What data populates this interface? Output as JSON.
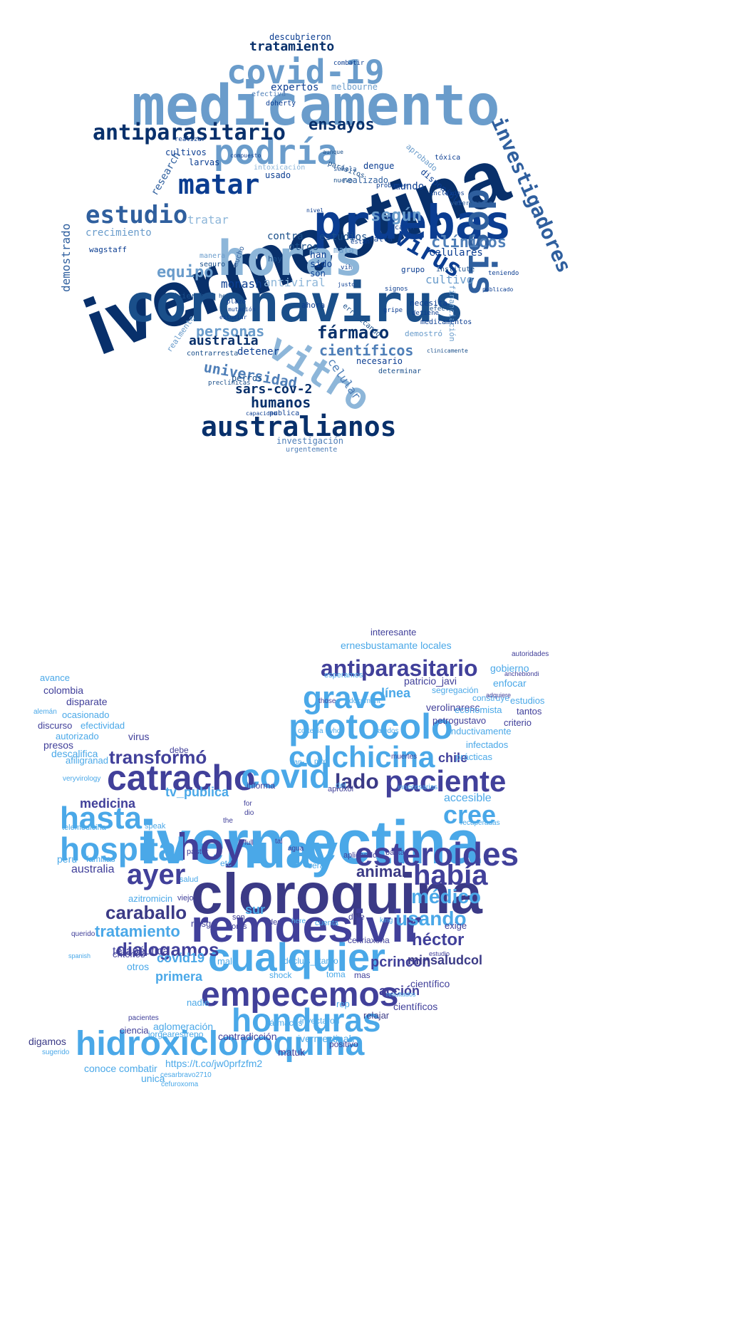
{
  "top_cloud": {
    "words": [
      "ivermectina",
      "medicamento",
      "coronavirus",
      "horas",
      "pruebas",
      "covid-19",
      "podría",
      "vitro",
      "dosis",
      "investigadores",
      "australianos",
      "antiparasitario",
      "estudio",
      "matar",
      "virus",
      "según",
      "clínicos",
      "fármaco",
      "científicos",
      "personas",
      "equipo",
      "universidad",
      "ensayos",
      "tratamiento",
      "humanos",
      "sars-cov-2",
      "celular",
      "cultivo",
      "monash",
      "australia",
      "crecimiento",
      "tratar",
      "demostrado",
      "research",
      "antiviral",
      "estudios",
      "celulares",
      "contra",
      "otros",
      "han",
      "sido",
      "son",
      "detener",
      "perros",
      "realizado",
      "dengue",
      "mundo",
      "expertos",
      "melbourne",
      "descubrieron",
      "cultivos",
      "usado",
      "wagstaff",
      "advierten",
      "grupo",
      "financiación",
      "necesario",
      "demostró",
      "necesita",
      "ahora",
      "realmente",
      "larvas",
      "mata",
      "acabar",
      "erradicando",
      "intoxicación",
      "aprobado",
      "disponible",
      "falta",
      "hay",
      "seguro",
      "manera",
      "investigación",
      "urgentemente",
      "publica",
      "preclínicas",
      "capacidad",
      "contrarresta",
      "determinar",
      "medicamentos",
      "efectos",
      "detiene",
      "institute",
      "teniendo",
      "signos",
      "gripe",
      "mucho",
      "parásitos",
      "doherty",
      "efectiva",
      "combatir",
      "tóxica",
      "veterinaria",
      "vih",
      "están",
      "nuevo",
      "compuesto",
      "realizar",
      "aunque",
      "probarse",
      "señala",
      "incluidos",
      "nivel",
      "justo",
      "plazo",
      "hecho",
      "mutación",
      "estudiar",
      "publicado",
      "clinicamente"
    ]
  },
  "bottom_cloud": {
    "words": [
      "ivermectina",
      "cloroquina",
      "remdesivir",
      "nuay",
      "hoy",
      "cualquier",
      "empecemos",
      "hidroxicloroquina",
      "honduras",
      "esteroides",
      "catracho",
      "paciente",
      "hospital",
      "hasta",
      "covid",
      "protocolo",
      "colchicina",
      "grave",
      "antiparasitario",
      "había",
      "ayer",
      "cree",
      "lado",
      "médico",
      "usando",
      "caraballo",
      "dialogamos",
      "tratamiento",
      "transformó",
      "animal",
      "héctor",
      "terapéutica",
      "pcrincon",
      "minsaludcol",
      "acción",
      "medicina",
      "chile",
      "accesible",
      "tv_publica",
      "covid19",
      "primera",
      "sur",
      "australia",
      "perú",
      "aglomeración",
      "línea",
      "jorgearestrepo",
      "interesante",
      "ernesbustamante locales",
      "gobierno",
      "enfocar",
      "construye",
      "segregación",
      "patricio_javi",
      "verolinaresc",
      "economista",
      "estudios",
      "tantos",
      "criterio",
      "adquiere",
      "anchebiondi",
      "autoridades",
      "petrogustavo",
      "inductivamente",
      "infectados",
      "prácticas",
      "recuperadas",
      "exige",
      "científico",
      "científicos",
      "resultados",
      "relajar",
      "rep",
      "matuk",
      "https://t.co/jw0prfzfm2",
      "cesarbravo2710",
      "cefuroxoma",
      "unica",
      "conoce combatir",
      "digamos",
      "sugerido",
      "ciencia",
      "pacientes",
      "nadie",
      "contradicción",
      "ivermectinah",
      "positivo",
      "inyectaron",
      "fármacos",
      "shock",
      "toma",
      "mas",
      "malo",
      "docluis_litardo",
      "ceftriaxona",
      "criterios",
      "otros",
      "riesgo",
      "horas",
      "son",
      "den",
      "dele",
      "cuenta",
      "here",
      "king",
      "azitromicin",
      "salud",
      "viejo",
      "pastor",
      "familias",
      "etc",
      "será",
      "aplicando",
      "basta",
      "speak",
      "telemedicina",
      "virus",
      "debe",
      "afiligranad",
      "descalifica",
      "presos",
      "autorizado",
      "efectividad",
      "discurso",
      "ocasionado",
      "alemán",
      "disparate",
      "colombia",
      "avance",
      "esperamos",
      "those",
      "document",
      "informa",
      "aproxol",
      "pax",
      "del",
      "han",
      "muertes",
      "innecesarias",
      "querido",
      "spanish",
      "estudio",
      "agua",
      "tal",
      "who",
      "cortesía",
      "saludos",
      "veryvirology",
      "full",
      "the",
      "dio",
      "for"
    ]
  }
}
